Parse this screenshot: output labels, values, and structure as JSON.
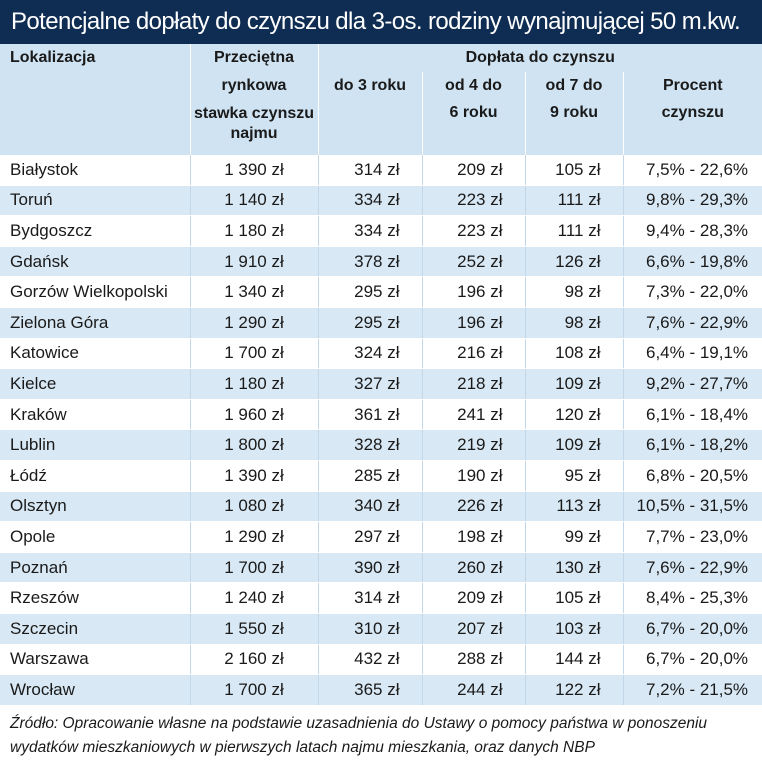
{
  "title": "Potencjalne dopłaty do czynszu dla 3-os. rodziny wynajmującej 50 m.kw.",
  "headers": {
    "location": "Lokalizacja",
    "avg_rent_lines": [
      "Przeciętna",
      "rynkowa",
      "stawka czynszu",
      "najmu"
    ],
    "subsidy_group": "Dopłata do czynszu",
    "year_1_3": "do 3 roku",
    "year_4_6_lines": [
      "od 4 do",
      "6 roku"
    ],
    "year_7_9_lines": [
      "od 7 do",
      "9 roku"
    ],
    "percent_lines": [
      "Procent",
      "czynszu"
    ]
  },
  "rows": [
    {
      "city": "Białystok",
      "rent": "1 390 zł",
      "y1": "314 zł",
      "y4": "209 zł",
      "y7": "105 zł",
      "pct": "7,5% - 22,6%"
    },
    {
      "city": "Toruń",
      "rent": "1 140 zł",
      "y1": "334 zł",
      "y4": "223 zł",
      "y7": "111 zł",
      "pct": "9,8% - 29,3%"
    },
    {
      "city": "Bydgoszcz",
      "rent": "1 180 zł",
      "y1": "334 zł",
      "y4": "223 zł",
      "y7": "111 zł",
      "pct": "9,4% - 28,3%"
    },
    {
      "city": "Gdańsk",
      "rent": "1 910 zł",
      "y1": "378 zł",
      "y4": "252 zł",
      "y7": "126 zł",
      "pct": "6,6% - 19,8%"
    },
    {
      "city": "Gorzów Wielkopolski",
      "rent": "1 340 zł",
      "y1": "295 zł",
      "y4": "196 zł",
      "y7": "98 zł",
      "pct": "7,3% - 22,0%"
    },
    {
      "city": "Zielona Góra",
      "rent": "1 290 zł",
      "y1": "295 zł",
      "y4": "196 zł",
      "y7": "98 zł",
      "pct": "7,6% - 22,9%"
    },
    {
      "city": "Katowice",
      "rent": "1 700 zł",
      "y1": "324 zł",
      "y4": "216 zł",
      "y7": "108 zł",
      "pct": "6,4% - 19,1%"
    },
    {
      "city": "Kielce",
      "rent": "1 180 zł",
      "y1": "327 zł",
      "y4": "218 zł",
      "y7": "109 zł",
      "pct": "9,2% - 27,7%"
    },
    {
      "city": "Kraków",
      "rent": "1 960 zł",
      "y1": "361 zł",
      "y4": "241 zł",
      "y7": "120 zł",
      "pct": "6,1% - 18,4%"
    },
    {
      "city": "Lublin",
      "rent": "1 800 zł",
      "y1": "328 zł",
      "y4": "219 zł",
      "y7": "109 zł",
      "pct": "6,1% - 18,2%"
    },
    {
      "city": "Łódź",
      "rent": "1 390 zł",
      "y1": "285 zł",
      "y4": "190 zł",
      "y7": "95 zł",
      "pct": "6,8% - 20,5%"
    },
    {
      "city": "Olsztyn",
      "rent": "1 080 zł",
      "y1": "340 zł",
      "y4": "226 zł",
      "y7": "113 zł",
      "pct": "10,5% - 31,5%"
    },
    {
      "city": "Opole",
      "rent": "1 290 zł",
      "y1": "297 zł",
      "y4": "198 zł",
      "y7": "99 zł",
      "pct": "7,7% - 23,0%"
    },
    {
      "city": "Poznań",
      "rent": "1 700 zł",
      "y1": "390 zł",
      "y4": "260 zł",
      "y7": "130 zł",
      "pct": "7,6% - 22,9%"
    },
    {
      "city": "Rzeszów",
      "rent": "1 240 zł",
      "y1": "314 zł",
      "y4": "209 zł",
      "y7": "105 zł",
      "pct": "8,4% - 25,3%"
    },
    {
      "city": "Szczecin",
      "rent": "1 550 zł",
      "y1": "310 zł",
      "y4": "207 zł",
      "y7": "103 zł",
      "pct": "6,7% - 20,0%"
    },
    {
      "city": "Warszawa",
      "rent": "2 160 zł",
      "y1": "432 zł",
      "y4": "288 zł",
      "y7": "144 zł",
      "pct": "6,7% - 20,0%"
    },
    {
      "city": "Wrocław",
      "rent": "1 700 zł",
      "y1": "365 zł",
      "y4": "244 zł",
      "y7": "122 zł",
      "pct": "7,2% - 21,5%"
    }
  ],
  "source_lines": [
    "Źródło: Opracowanie własne na podstawie uzasadnienia do Ustawy o pomocy państwa w ponoszeniu",
    "wydatków mieszkaniowych w pierwszych latach najmu mieszkania, oraz danych NBP"
  ],
  "colors": {
    "title_bg": "#0f2d52",
    "header_bg": "#cfe3f2",
    "stripe": "#d8e8f4"
  }
}
